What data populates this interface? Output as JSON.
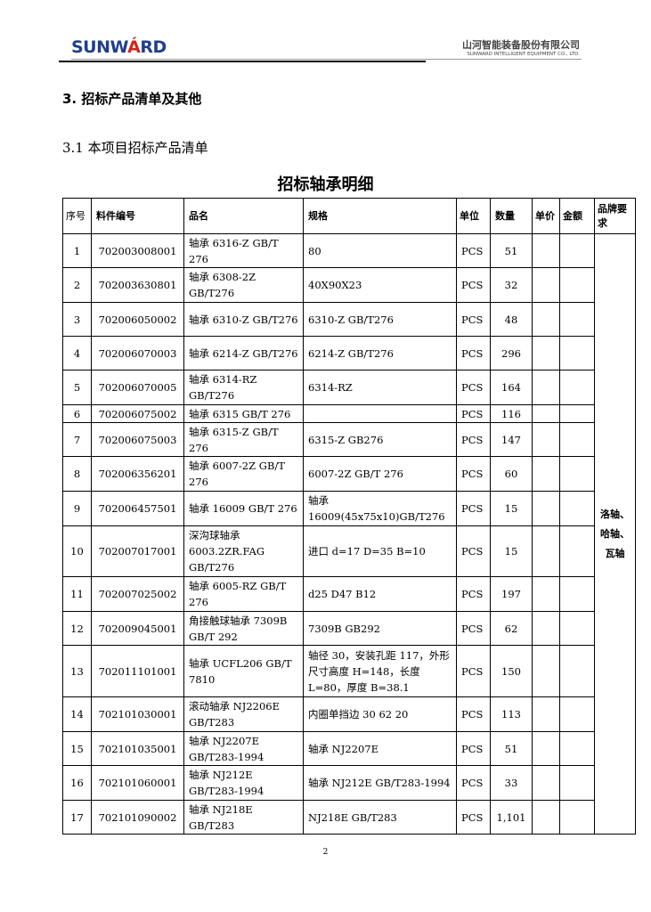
{
  "header": {
    "logo": "SUNWARD",
    "company_cn": "山河智能装备股份有限公司",
    "company_en": "SUNWARD INTELLIGENT EQUIPMENT CO., LTD."
  },
  "section_heading": "3.  招标产品清单及其他",
  "subsection_heading": "3.1  本项目招标产品清单",
  "table_title": "招标轴承明细",
  "columns": [
    "序号",
    "料件编号",
    "品名",
    "规格",
    "单位",
    "数量",
    "单价",
    "金额",
    "品牌要求"
  ],
  "brand_requirement": "洛轴、哈轴、瓦轴",
  "rows": [
    [
      "1",
      "702003008001",
      "轴承 6316-Z GB/T 276",
      "80",
      "PCS",
      "51"
    ],
    [
      "2",
      "702003630801",
      "轴承 6308-2Z GB/T276",
      "40X90X23",
      "PCS",
      "32"
    ],
    [
      "3",
      "702006050002",
      "轴承 6310-Z GB/T276",
      "6310-Z GB/T276",
      "PCS",
      "48"
    ],
    [
      "4",
      "702006070003",
      "轴承 6214-Z GB/T276",
      "6214-Z GB/T276",
      "PCS",
      "296"
    ],
    [
      "5",
      "702006070005",
      "轴承 6314-RZ GB/T276",
      "6314-RZ",
      "PCS",
      "164"
    ],
    [
      "6",
      "702006075002",
      "轴承 6315 GB/T 276",
      "",
      "PCS",
      "116"
    ],
    [
      "7",
      "702006075003",
      "轴承 6315-Z GB/T 276",
      "6315-Z GB276",
      "PCS",
      "147"
    ],
    [
      "8",
      "702006356201",
      "轴承 6007-2Z GB/T 276",
      "6007-2Z GB/T 276",
      "PCS",
      "60"
    ],
    [
      "9",
      "702006457501",
      "轴承 16009 GB/T 276",
      "轴承 16009(45x75x10)GB/T276",
      "PCS",
      "15"
    ],
    [
      "10",
      "702007017001",
      "深沟球轴承 6003.2ZR.FAG GB/T276",
      "进口  d=17 D=35 B=10",
      "PCS",
      "15"
    ],
    [
      "11",
      "702007025002",
      "轴承 6005-RZ GB/T 276",
      "d25 D47 B12",
      "PCS",
      "197"
    ],
    [
      "12",
      "702009045001",
      "角接触球轴承 7309B GB/T 292",
      "7309B GB292",
      "PCS",
      "62"
    ],
    [
      "13",
      "702011101001",
      "轴承 UCFL206 GB/T 7810",
      "轴径 30，安装孔距 117，外形尺寸高度 H=148，长度 L=80，厚度 B=38.1",
      "PCS",
      "150"
    ],
    [
      "14",
      "702101030001",
      "滚动轴承 NJ2206E GB/T283",
      "内圈单挡边 30 62 20",
      "PCS",
      "113"
    ],
    [
      "15",
      "702101035001",
      "轴承 NJ2207E GB/T283-1994",
      "轴承 NJ2207E",
      "PCS",
      "51"
    ],
    [
      "16",
      "702101060001",
      "轴承 NJ212E GB/T283-1994",
      "轴承 NJ212E GB/T283-1994",
      "PCS",
      "33"
    ],
    [
      "17",
      "702101090002",
      "轴承 NJ218E GB/T283",
      "NJ218E GB/T283",
      "PCS",
      "1,101"
    ]
  ],
  "page_number": "2"
}
